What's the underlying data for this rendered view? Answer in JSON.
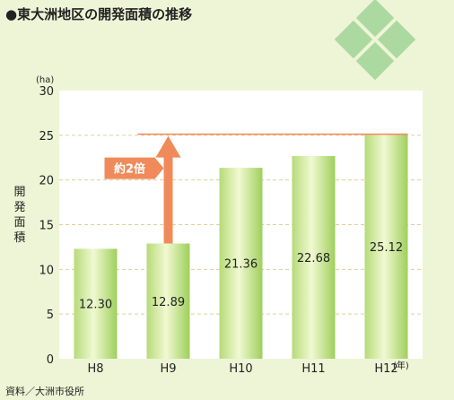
{
  "chart_data": {
    "type": "bar",
    "title": "●東大洲地区の開発面積の推移",
    "unit_label": "(ha)",
    "ylabel": "開発面積",
    "x_unit_label": "(年)",
    "categories": [
      "H8",
      "H9",
      "H10",
      "H11",
      "H12"
    ],
    "values": [
      12.3,
      12.89,
      21.36,
      22.68,
      25.12
    ],
    "value_labels": [
      "12.30",
      "12.89",
      "21.36",
      "22.68",
      "25.12"
    ],
    "ylim": [
      0,
      30
    ],
    "yticks": [
      "0",
      "5",
      "10",
      "15",
      "20",
      "25",
      "30"
    ],
    "grid": true,
    "annotation": {
      "text": "約2倍",
      "from_category": "H9",
      "from_value": 12.89,
      "to_value": 25.12,
      "color": "#f08a5a"
    },
    "source": "資料／大洲市役所",
    "colors": {
      "background": "#eef5d6",
      "plot": "#ffffff",
      "bar_light": "#f1f9d2",
      "bar_dark": "#a6d463",
      "arrow": "#f08a5a",
      "grid": "#e0cf9a"
    }
  }
}
